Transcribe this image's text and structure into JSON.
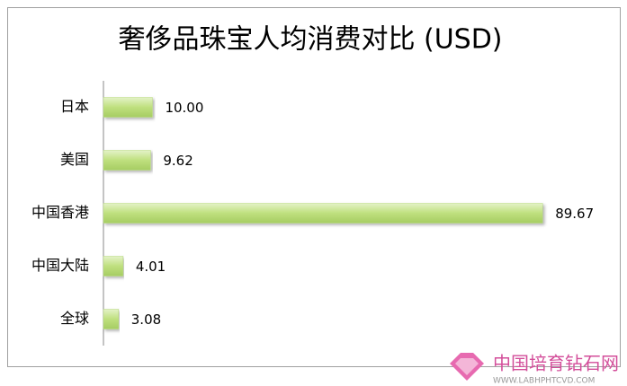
{
  "chart_data": {
    "type": "bar",
    "orientation": "horizontal",
    "title": "奢侈品珠宝人均消费对比 (USD)",
    "categories": [
      "日本",
      "美国",
      "中国香港",
      "中国大陆",
      "全球"
    ],
    "values": [
      10.0,
      9.62,
      89.67,
      4.01,
      3.08
    ],
    "value_labels": [
      "10.00",
      "9.62",
      "89.67",
      "4.01",
      "3.08"
    ],
    "color": "#b5d97a",
    "xlim": [
      0,
      90
    ]
  },
  "watermark": {
    "title": "中国培育钻石网",
    "url": "WWW.LABHPHTCVD.COM"
  }
}
